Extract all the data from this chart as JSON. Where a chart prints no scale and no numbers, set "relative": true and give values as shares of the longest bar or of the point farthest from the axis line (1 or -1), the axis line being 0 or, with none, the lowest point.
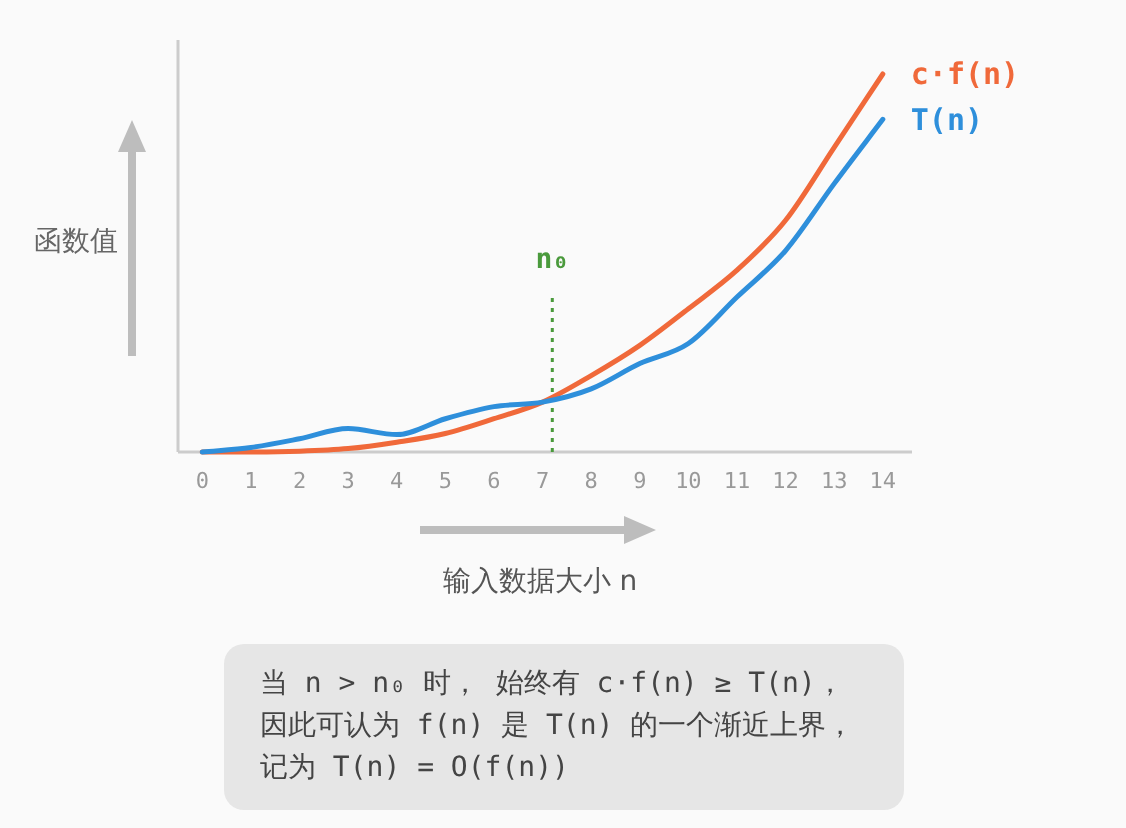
{
  "chart_data": {
    "type": "line",
    "relative": true,
    "xlabel": "输入数据大小 n",
    "ylabel": "函数值",
    "x": [
      0,
      1,
      2,
      3,
      4,
      5,
      6,
      7,
      8,
      9,
      10,
      11,
      12,
      13,
      14
    ],
    "xlim": [
      -0.5,
      14.6
    ],
    "xticks": [
      0,
      1,
      2,
      3,
      4,
      5,
      6,
      7,
      8,
      9,
      10,
      11,
      12,
      13,
      14
    ],
    "series": [
      {
        "name": "c·f(n)",
        "color": "#f0693a",
        "values": [
          0,
          0,
          0.002,
          0.009,
          0.026,
          0.049,
          0.088,
          0.132,
          0.202,
          0.282,
          0.379,
          0.481,
          0.613,
          0.806,
          1
        ]
      },
      {
        "name": "T(n)",
        "color": "#2e8fdb",
        "values": [
          0,
          0.012,
          0.035,
          0.062,
          0.046,
          0.088,
          0.12,
          0.132,
          0.167,
          0.234,
          0.287,
          0.41,
          0.533,
          0.71,
          0.88
        ]
      }
    ],
    "ref_lines": [
      {
        "axis": "x",
        "value": 7.2,
        "label": "n₀",
        "color": "#4a9a3c",
        "line_style": "dotted"
      }
    ],
    "annotations": [
      "当 n > n₀ 时， 始终有 c·f(n) ≥ T(n)，",
      "因此可认为 f(n) 是 T(n) 的一个渐近上界，",
      "记为 T(n) = O(f(n))"
    ]
  }
}
